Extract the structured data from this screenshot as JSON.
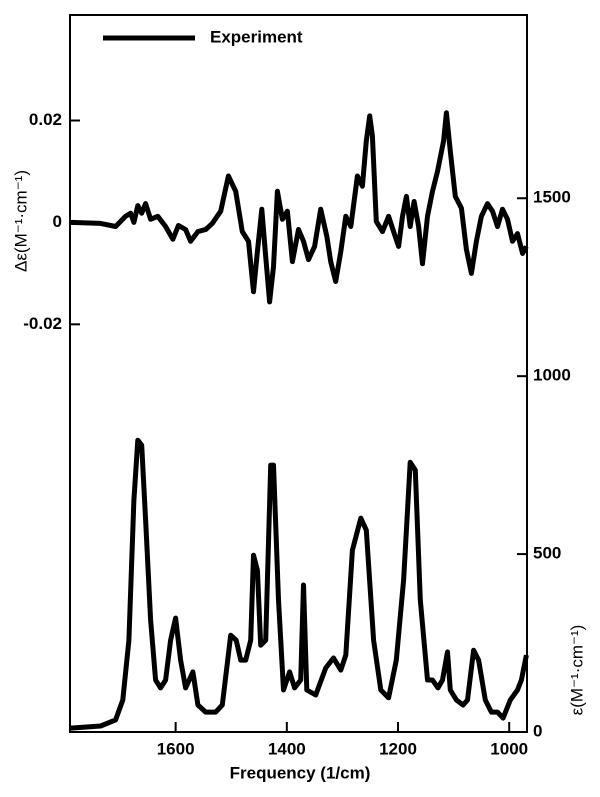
{
  "chart_data": {
    "type": "line",
    "xlabel": "Frequency (1/cm)",
    "ylabel": "Δε(M⁻¹·cm⁻¹)",
    "y2label": "ε(M⁻¹·cm⁻¹)",
    "xlim": [
      1790,
      968
    ],
    "xticks": [
      1600,
      1400,
      1200,
      1000
    ],
    "ylim": [
      -0.1,
      0.0407
    ],
    "yticks": [
      0.02,
      0,
      -0.02
    ],
    "y2lim": [
      0,
      2015
    ],
    "y2ticks": [
      0,
      500,
      1000,
      1500
    ],
    "legend": "upper left",
    "series": [
      {
        "name": "Experiment",
        "color": "#000000",
        "axis": "y",
        "x": [
          1789,
          1735,
          1708,
          1690,
          1681,
          1675,
          1668,
          1661,
          1654,
          1645,
          1632,
          1618,
          1605,
          1595,
          1582,
          1573,
          1560,
          1546,
          1534,
          1519,
          1505,
          1492,
          1480,
          1469,
          1460,
          1453,
          1445,
          1438,
          1431,
          1424,
          1417,
          1408,
          1399,
          1390,
          1379,
          1370,
          1361,
          1350,
          1339,
          1328,
          1321,
          1312,
          1303,
          1294,
          1285,
          1273,
          1264,
          1257,
          1251,
          1246,
          1239,
          1228,
          1217,
          1208,
          1199,
          1192,
          1185,
          1178,
          1171,
          1163,
          1156,
          1147,
          1138,
          1129,
          1118,
          1113,
          1106,
          1097,
          1086,
          1077,
          1068,
          1059,
          1050,
          1039,
          1030,
          1021,
          1012,
          1003,
          994,
          985,
          976,
          969
        ],
        "values": [
          0,
          -0.0002,
          -0.0008,
          0.0012,
          0.0018,
          0,
          0.0033,
          0.0018,
          0.0037,
          0.0006,
          0.0012,
          -0.0008,
          -0.0033,
          -0.0006,
          -0.0014,
          -0.0037,
          -0.0018,
          -0.0014,
          -0.0002,
          0.0022,
          0.0091,
          0.0061,
          -0.0018,
          -0.0037,
          -0.0136,
          -0.0057,
          0.0026,
          -0.0067,
          -0.0156,
          -0.0087,
          0.0061,
          0.0006,
          0.0022,
          -0.0077,
          -0.0014,
          -0.0037,
          -0.0073,
          -0.0047,
          0.0026,
          -0.0028,
          -0.0077,
          -0.0116,
          -0.0057,
          0.0012,
          -0.0008,
          0.0091,
          0.0071,
          0.016,
          0.0209,
          0.017,
          0.0002,
          -0.0018,
          0.0012,
          -0.0018,
          -0.0047,
          0.0012,
          0.0051,
          -0.0008,
          0.0041,
          -0.0008,
          -0.0081,
          0.0012,
          0.0061,
          0.01,
          0.016,
          0.0215,
          0.014,
          0.0051,
          0.0028,
          -0.0053,
          -0.01,
          -0.0037,
          0.0012,
          0.0037,
          0.0022,
          -0.0008,
          0.0026,
          0.0006,
          -0.0037,
          -0.0022,
          -0.0061,
          -0.0047
        ]
      },
      {
        "color": "#000000",
        "axis": "y2",
        "x": [
          1789,
          1735,
          1708,
          1695,
          1684,
          1675,
          1668,
          1661,
          1654,
          1645,
          1636,
          1627,
          1618,
          1609,
          1600,
          1591,
          1582,
          1569,
          1560,
          1546,
          1528,
          1516,
          1501,
          1491,
          1483,
          1474,
          1465,
          1460,
          1453,
          1447,
          1438,
          1429,
          1424,
          1415,
          1406,
          1395,
          1386,
          1375,
          1370,
          1364,
          1348,
          1330,
          1316,
          1303,
          1294,
          1282,
          1267,
          1257,
          1244,
          1231,
          1217,
          1203,
          1190,
          1178,
          1169,
          1160,
          1147,
          1138,
          1128,
          1120,
          1111,
          1106,
          1095,
          1083,
          1075,
          1064,
          1055,
          1043,
          1032,
          1021,
          1011,
          998,
          985,
          978,
          969
        ],
        "values": [
          11,
          17,
          34,
          90,
          258,
          652,
          820,
          806,
          596,
          315,
          146,
          124,
          146,
          258,
          320,
          202,
          124,
          169,
          76,
          56,
          56,
          76,
          272,
          258,
          202,
          202,
          258,
          497,
          455,
          244,
          258,
          750,
          750,
          371,
          118,
          169,
          124,
          146,
          413,
          118,
          104,
          180,
          208,
          174,
          216,
          511,
          601,
          567,
          258,
          118,
          96,
          202,
          427,
          758,
          736,
          371,
          146,
          146,
          124,
          146,
          225,
          118,
          90,
          76,
          90,
          230,
          202,
          90,
          56,
          56,
          39,
          90,
          118,
          146,
          216
        ]
      }
    ]
  }
}
